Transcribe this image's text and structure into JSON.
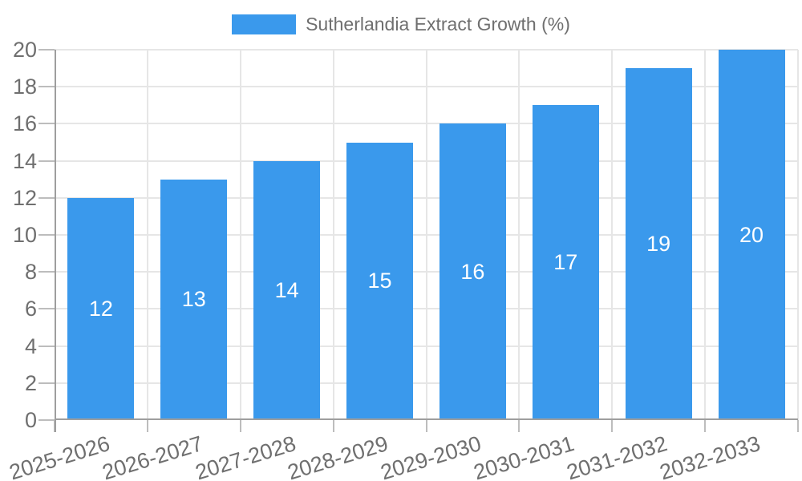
{
  "legend": {
    "label": "Sutherlandia Extract Growth (%)"
  },
  "chart_data": {
    "type": "bar",
    "title": "Sutherlandia Extract Growth (%)",
    "legend_position": "top",
    "categories": [
      "2025-2026",
      "2026-2027",
      "2027-2028",
      "2028-2029",
      "2029-2030",
      "2030-2031",
      "2031-2032",
      "2032-2033"
    ],
    "values": [
      12,
      13,
      14,
      15,
      16,
      17,
      19,
      20
    ],
    "xlabel": "",
    "ylabel": "",
    "ylim": [
      0,
      20
    ],
    "ytick_step": 2,
    "grid": true,
    "value_labels_inside_bars": true,
    "colors": {
      "bar": "#3a99ec",
      "value_label": "#ffffff",
      "axis_text": "#6f6f6f",
      "gridline": "#e6e6e6",
      "axis_line": "#9e9e9e",
      "tick": "#bdbdbd",
      "background": "#ffffff"
    }
  }
}
